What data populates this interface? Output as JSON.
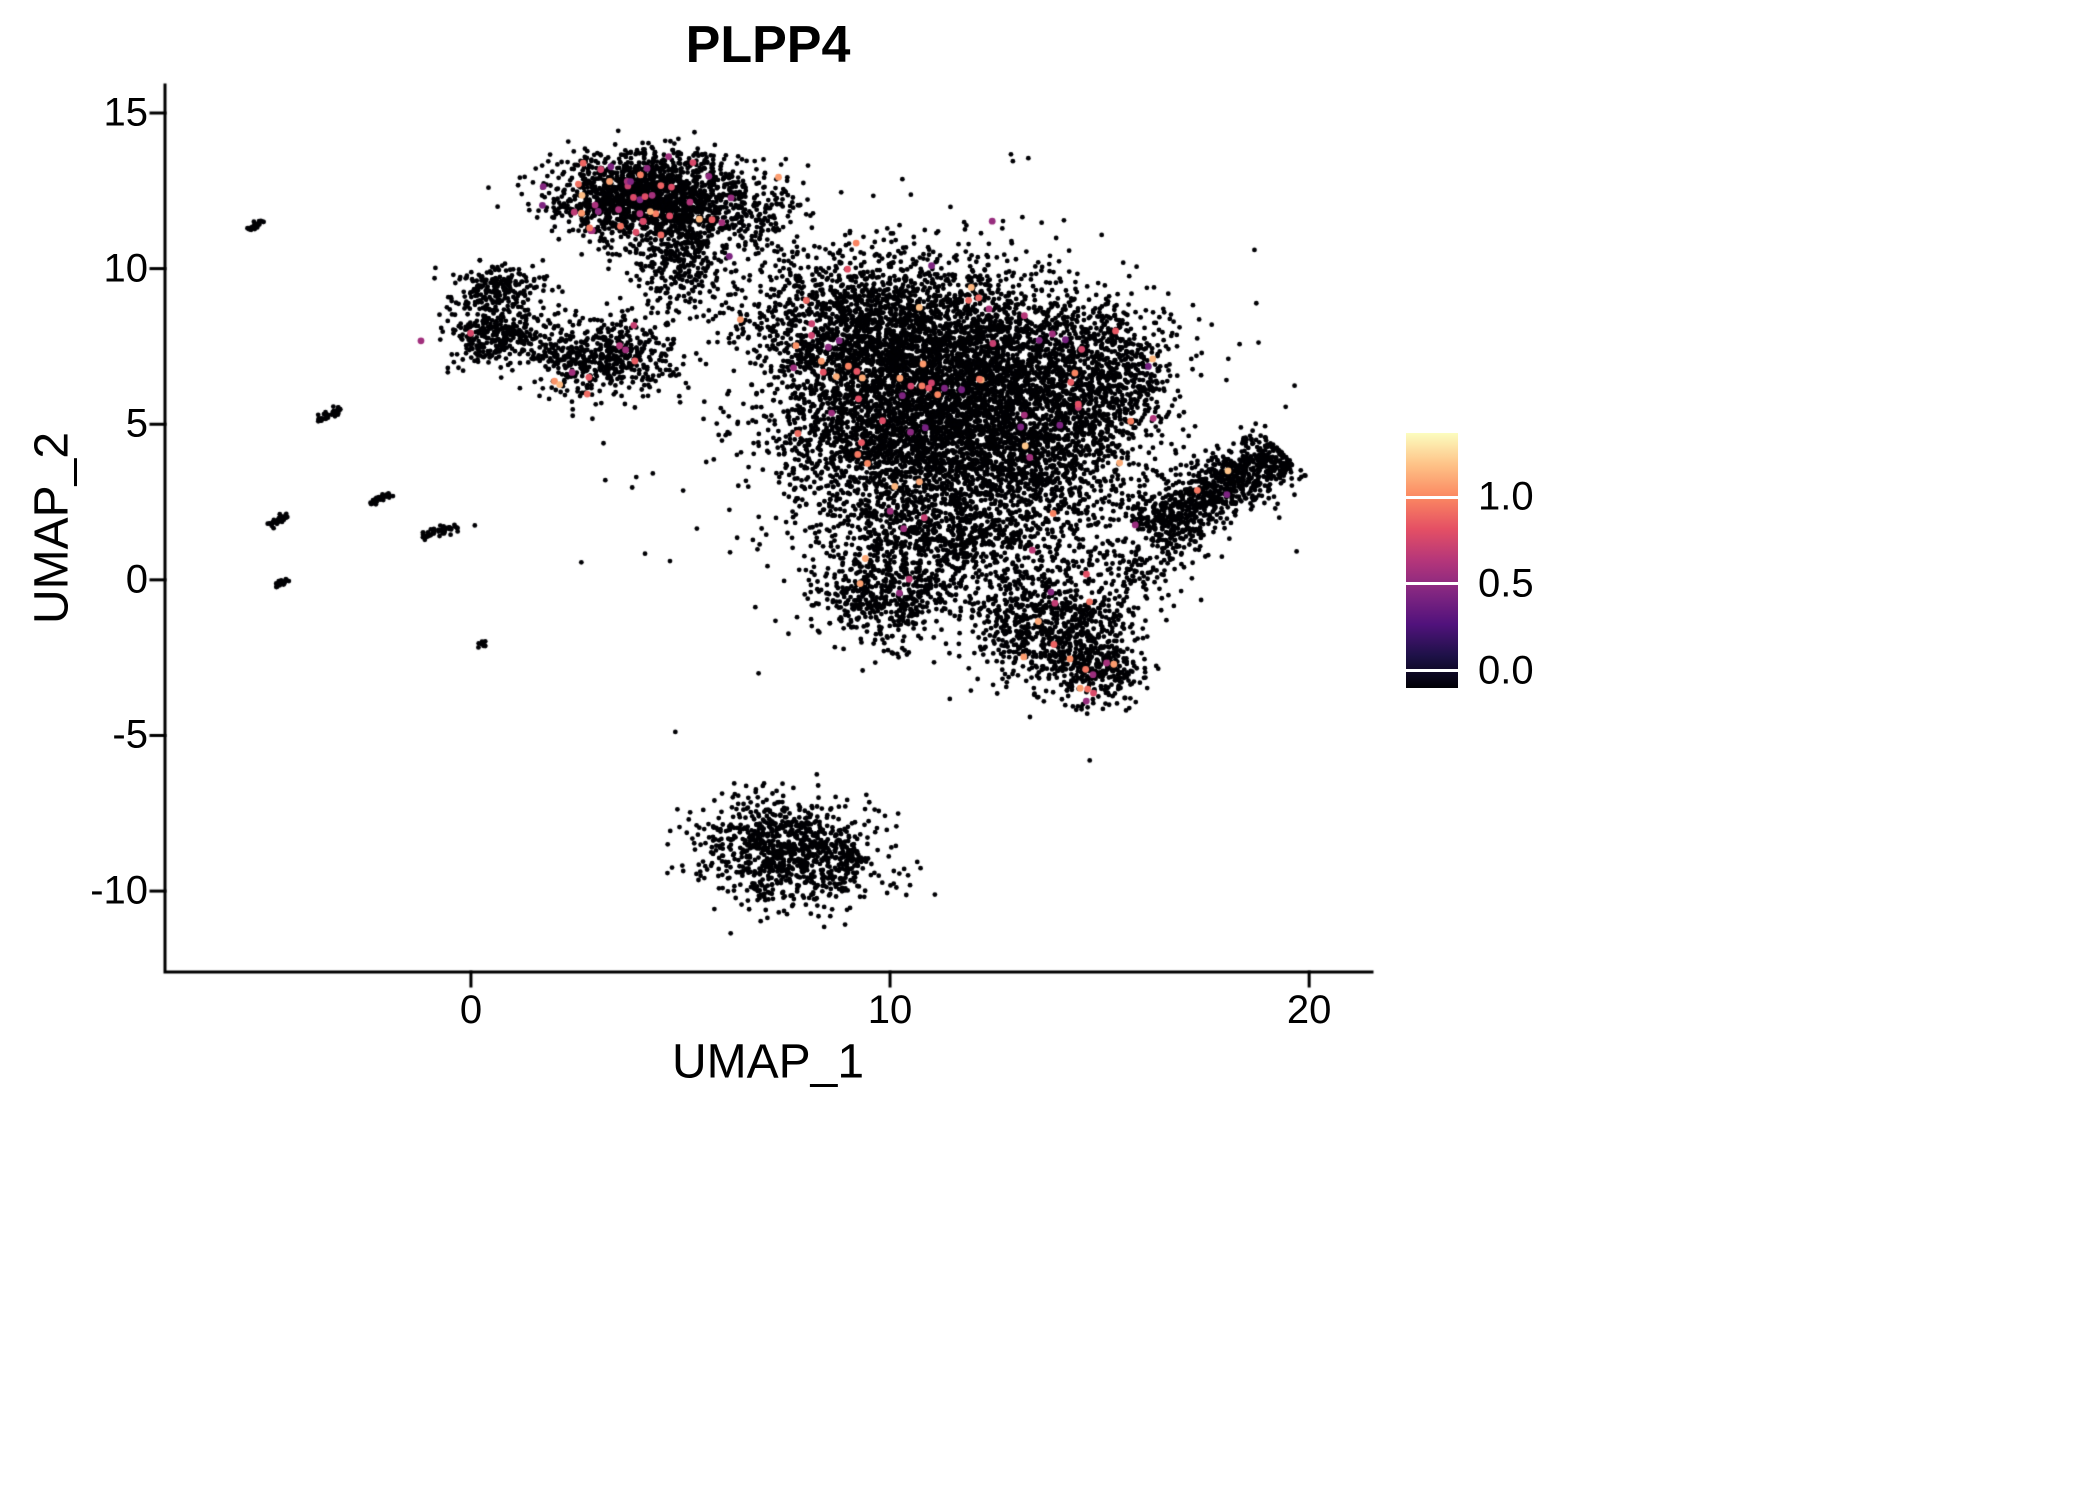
{
  "chart_data": {
    "type": "scatter",
    "title": "PLPP4",
    "xlabel": "UMAP_1",
    "ylabel": "UMAP_2",
    "xlim": [
      -7.3,
      21.5
    ],
    "ylim": [
      -12.6,
      15.9
    ],
    "xticks": [
      0,
      10,
      20
    ],
    "yticks": [
      -10,
      -5,
      0,
      5,
      10,
      15
    ],
    "grid": false,
    "background": "#ffffff",
    "axis_color": "#000000",
    "point_color": "#000004",
    "point_radius_px": 2.4,
    "colored_point_radius_px": 3.4,
    "colorbar": {
      "position": "right",
      "ticks": [
        "1.0",
        "0.5",
        "0.0"
      ],
      "tick_values": [
        1.0,
        0.5,
        0.0
      ],
      "domain": [
        -0.1,
        1.37
      ],
      "stops": [
        "#000004",
        "#1d1147",
        "#51127c",
        "#822681",
        "#b5367a",
        "#e55064",
        "#fb8861",
        "#fec287",
        "#fcfdbf"
      ]
    },
    "expression_note": "Most cells have expression 0 (black); sparse cells show expression 0.4-1.2 (magma colors)",
    "clusters": [
      {
        "name": "top-blob",
        "cx": 4.3,
        "cy": 12.3,
        "sx": 1.15,
        "sy": 0.7,
        "n": 1800,
        "colored_frac": 0.025
      },
      {
        "name": "top-blob-tail",
        "cx": 4.9,
        "cy": 10.4,
        "sx": 0.5,
        "sy": 0.8,
        "n": 260,
        "colored_frac": 0.004
      },
      {
        "name": "top-right-sparse",
        "cx": 6.9,
        "cy": 11.9,
        "sx": 0.55,
        "sy": 0.6,
        "n": 130,
        "colored_frac": 0.008
      },
      {
        "name": "upper-left-blob-top",
        "cx": 0.7,
        "cy": 9.4,
        "sx": 0.55,
        "sy": 0.33,
        "n": 200,
        "colored_frac": 0.0
      },
      {
        "name": "upper-left-blob",
        "cx": 0.5,
        "cy": 7.9,
        "sx": 0.6,
        "sy": 0.55,
        "n": 320,
        "colored_frac": 0.003
      },
      {
        "name": "upper-left-bridge",
        "cx": 1.9,
        "cy": 7.6,
        "sx": 0.55,
        "sy": 0.45,
        "n": 70,
        "colored_frac": 0.0
      },
      {
        "name": "mid-left-blob",
        "cx": 3.2,
        "cy": 7.1,
        "sx": 0.8,
        "sy": 0.62,
        "n": 520,
        "colored_frac": 0.02
      },
      {
        "name": "bridge-top-main",
        "cx": 6.3,
        "cy": 9.9,
        "sx": 1.1,
        "sy": 0.9,
        "n": 110,
        "colored_frac": 0.0
      },
      {
        "name": "main-upper-left",
        "cx": 9.2,
        "cy": 8.0,
        "sx": 1.25,
        "sy": 1.25,
        "n": 1500,
        "colored_frac": 0.006
      },
      {
        "name": "main-core",
        "cx": 12.0,
        "cy": 7.0,
        "sx": 1.6,
        "sy": 1.5,
        "n": 2500,
        "colored_frac": 0.012
      },
      {
        "name": "main-left-lobe",
        "cx": 10.2,
        "cy": 4.6,
        "sx": 1.5,
        "sy": 1.3,
        "n": 1800,
        "colored_frac": 0.006
      },
      {
        "name": "main-lower-right-lobe",
        "cx": 13.5,
        "cy": 4.1,
        "sx": 1.3,
        "sy": 1.2,
        "n": 1200,
        "colored_frac": 0.008
      },
      {
        "name": "main-right-bump",
        "cx": 15.2,
        "cy": 6.6,
        "sx": 0.85,
        "sy": 1.15,
        "n": 700,
        "colored_frac": 0.015
      },
      {
        "name": "main-lower-band",
        "cx": 11.4,
        "cy": 1.4,
        "sx": 1.5,
        "sy": 1.0,
        "n": 950,
        "colored_frac": 0.006
      },
      {
        "name": "main-lower-left",
        "cx": 9.9,
        "cy": -0.6,
        "sx": 0.85,
        "sy": 0.75,
        "n": 480,
        "colored_frac": 0.004
      },
      {
        "name": "lower-right-blob",
        "cx": 13.8,
        "cy": -1.4,
        "sx": 0.95,
        "sy": 0.9,
        "n": 750,
        "colored_frac": 0.02
      },
      {
        "name": "lower-right-tip",
        "cx": 14.9,
        "cy": -2.8,
        "sx": 0.6,
        "sy": 0.6,
        "n": 300,
        "colored_frac": 0.03
      },
      {
        "name": "main-halo",
        "cx": 11.3,
        "cy": 4.3,
        "sx": 3.4,
        "sy": 3.2,
        "n": 420,
        "colored_frac": 0.004
      },
      {
        "name": "arm-connector",
        "cx": 15.9,
        "cy": 0.4,
        "sx": 0.7,
        "sy": 0.6,
        "n": 130,
        "colored_frac": 0.0
      },
      {
        "name": "right-arm",
        "cx": 17.7,
        "cy": 2.8,
        "shape": "streak",
        "len": 2.1,
        "width": 0.5,
        "rot": 38,
        "n": 950,
        "colored_frac": 0.008
      },
      {
        "name": "bottom-cluster",
        "cx": 7.6,
        "cy": -8.7,
        "sx": 1.05,
        "sy": 0.8,
        "rot": -12,
        "n": 950,
        "colored_frac": 0.0
      },
      {
        "name": "bottom-tail",
        "cx": 9.0,
        "cy": -9.2,
        "shape": "streak",
        "len": 0.8,
        "width": 0.14,
        "rot": 78,
        "n": 60,
        "colored_frac": 0.0
      },
      {
        "name": "doublet-streak-1",
        "cx": -5.15,
        "cy": 11.4,
        "shape": "streak",
        "len": 0.22,
        "width": 0.05,
        "rot": 40,
        "n": 22,
        "colored_frac": 0.0
      },
      {
        "name": "doublet-streak-2",
        "cx": -3.4,
        "cy": 5.3,
        "shape": "streak",
        "len": 0.35,
        "width": 0.06,
        "rot": 38,
        "n": 40,
        "colored_frac": 0.0
      },
      {
        "name": "doublet-streak-3",
        "cx": -4.6,
        "cy": 1.9,
        "shape": "streak",
        "len": 0.3,
        "width": 0.06,
        "rot": 38,
        "n": 30,
        "colored_frac": 0.0
      },
      {
        "name": "doublet-streak-4",
        "cx": -2.15,
        "cy": 2.6,
        "shape": "streak",
        "len": 0.3,
        "width": 0.06,
        "rot": 38,
        "n": 34,
        "colored_frac": 0.0
      },
      {
        "name": "doublet-streak-5",
        "cx": -0.75,
        "cy": 1.55,
        "shape": "streak",
        "len": 0.45,
        "width": 0.07,
        "rot": 15,
        "n": 48,
        "colored_frac": 0.0
      },
      {
        "name": "doublet-streak-6",
        "cx": -4.5,
        "cy": -0.1,
        "shape": "streak",
        "len": 0.2,
        "width": 0.05,
        "rot": 38,
        "n": 18,
        "colored_frac": 0.0
      },
      {
        "name": "doublet-dot-7",
        "cx": 0.25,
        "cy": -2.1,
        "sx": 0.06,
        "sy": 0.06,
        "n": 10,
        "colored_frac": 0.0
      }
    ]
  }
}
